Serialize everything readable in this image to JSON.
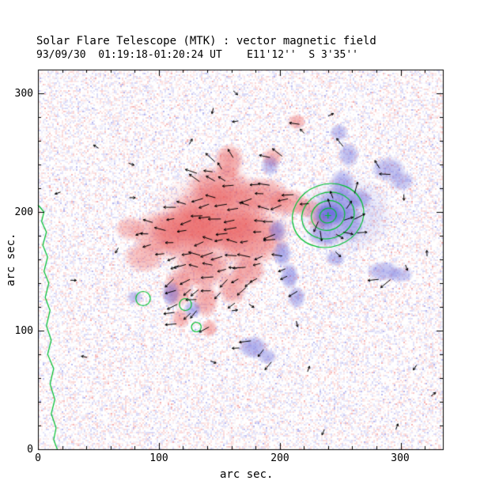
{
  "chart_data": {
    "type": "heatmap",
    "title": "Solar Flare Telescope (MTK) : vector magnetic field",
    "subtitle": "93/09/30  01:19:18-01:20:24 UT    E11'12''  S 3'35''",
    "xlabel": "arc sec.",
    "ylabel": "arc sec.",
    "xlim": [
      0,
      335
    ],
    "ylim": [
      0,
      320
    ],
    "xticks": [
      0,
      100,
      200,
      300
    ],
    "yticks": [
      0,
      100,
      200,
      300
    ],
    "minor_tick_step": 20,
    "axis_color": "#000000",
    "seed": 1337,
    "colors": {
      "positive": "#e85050",
      "negative": "#5a5ad8",
      "noise_pos": "#ee7070",
      "noise_neg": "#7878e2",
      "contour": "#00c030",
      "vector": "#000000"
    },
    "noise": {
      "skip": 0.4,
      "alpha": 0.3
    },
    "regions": {
      "positive": [
        [
          152,
          190,
          62,
          48,
          0.26
        ],
        [
          148,
          195,
          42,
          30,
          0.58
        ],
        [
          122,
          182,
          32,
          26,
          0.52
        ],
        [
          175,
          178,
          32,
          24,
          0.52
        ],
        [
          100,
          182,
          24,
          20,
          0.45
        ],
        [
          88,
          162,
          18,
          14,
          0.4
        ],
        [
          76,
          186,
          13,
          11,
          0.38
        ],
        [
          150,
          222,
          28,
          18,
          0.5
        ],
        [
          158,
          243,
          13,
          15,
          0.55
        ],
        [
          186,
          214,
          24,
          16,
          0.5
        ],
        [
          207,
          208,
          18,
          12,
          0.5
        ],
        [
          224,
          203,
          12,
          9,
          0.45
        ],
        [
          232,
          192,
          9,
          7,
          0.4
        ],
        [
          136,
          152,
          24,
          18,
          0.55
        ],
        [
          116,
          136,
          13,
          17,
          0.5
        ],
        [
          118,
          110,
          8,
          9,
          0.45
        ],
        [
          139,
          126,
          11,
          16,
          0.5
        ],
        [
          142,
          102,
          7,
          8,
          0.45
        ],
        [
          161,
          136,
          13,
          15,
          0.5
        ],
        [
          174,
          150,
          15,
          13,
          0.5
        ],
        [
          194,
          246,
          9,
          9,
          0.42
        ],
        [
          214,
          276,
          8,
          7,
          0.45
        ]
      ],
      "negative": [
        [
          255,
          198,
          40,
          34,
          0.2
        ],
        [
          240,
          197,
          13,
          11,
          0.78
        ],
        [
          248,
          206,
          19,
          15,
          0.5
        ],
        [
          237,
          181,
          15,
          11,
          0.45
        ],
        [
          257,
          190,
          13,
          16,
          0.45
        ],
        [
          252,
          224,
          11,
          13,
          0.45
        ],
        [
          257,
          248,
          9,
          11,
          0.42
        ],
        [
          249,
          267,
          8,
          8,
          0.4
        ],
        [
          290,
          236,
          15,
          11,
          0.42
        ],
        [
          301,
          226,
          11,
          9,
          0.38
        ],
        [
          286,
          150,
          15,
          9,
          0.42
        ],
        [
          300,
          147,
          11,
          7,
          0.38
        ],
        [
          198,
          184,
          8,
          10,
          0.5
        ],
        [
          202,
          165,
          8,
          12,
          0.5
        ],
        [
          208,
          146,
          8,
          12,
          0.5
        ],
        [
          214,
          128,
          8,
          10,
          0.45
        ],
        [
          178,
          86,
          13,
          10,
          0.5
        ],
        [
          190,
          78,
          8,
          7,
          0.42
        ],
        [
          110,
          131,
          8,
          11,
          0.48
        ],
        [
          128,
          118,
          8,
          8,
          0.45
        ],
        [
          80,
          128,
          7,
          6,
          0.4
        ],
        [
          192,
          239,
          8,
          9,
          0.42
        ],
        [
          266,
          211,
          11,
          9,
          0.42
        ],
        [
          246,
          161,
          9,
          7,
          0.42
        ]
      ]
    },
    "contours": {
      "color_note": "green contours",
      "rings": {
        "center": [
          240,
          197
        ],
        "radii": [
          30,
          22,
          14,
          7
        ],
        "aspect": 0.88,
        "rot": -0.35
      },
      "marker": [
        240,
        197
      ],
      "small_circles": [
        [
          87,
          127,
          6
        ],
        [
          122,
          122,
          5
        ],
        [
          131,
          103,
          4
        ]
      ],
      "meander": [
        [
          0,
          206
        ],
        [
          5,
          200
        ],
        [
          3,
          192
        ],
        [
          7,
          183
        ],
        [
          4,
          172
        ],
        [
          8,
          162
        ],
        [
          5,
          150
        ],
        [
          9,
          140
        ],
        [
          6,
          128
        ],
        [
          10,
          117
        ],
        [
          7,
          104
        ],
        [
          11,
          92
        ],
        [
          8,
          80
        ],
        [
          13,
          68
        ],
        [
          10,
          55
        ],
        [
          14,
          42
        ],
        [
          11,
          30
        ],
        [
          15,
          18
        ],
        [
          13,
          8
        ],
        [
          16,
          0
        ]
      ]
    },
    "vector_field": {
      "grid_step": 10,
      "keep_prob": 0.78,
      "mask_shrink": 0.9,
      "mask_min_alpha": 0.42,
      "len_min": 6,
      "len_rand": 5,
      "spot": {
        "center": [
          240,
          197
        ],
        "radius": 42,
        "twist_deg": 35
      },
      "zones": [
        {
          "ymin": 225,
          "angle": 150,
          "spread": 30
        },
        {
          "ymin": 150,
          "angle": 183,
          "spread": 22
        },
        {
          "ymin": -999,
          "angle": 205,
          "spread": 28
        }
      ],
      "background_count": 30,
      "background_len": 5
    }
  }
}
